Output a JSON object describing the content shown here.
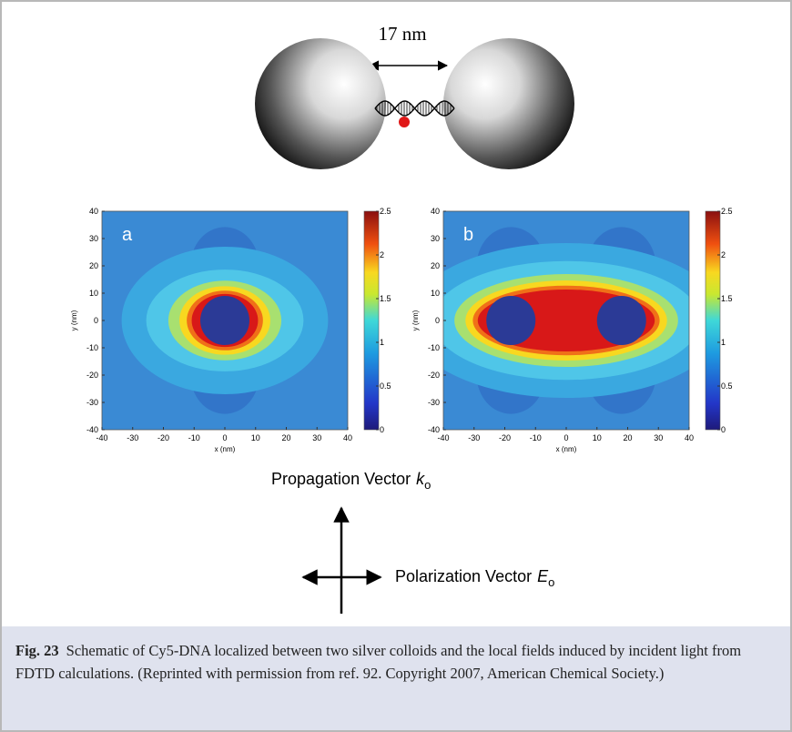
{
  "schematic": {
    "distance_label": "17 nm"
  },
  "panels": [
    {
      "label": "a",
      "y_axis_label": "y (nm)",
      "x_axis_label": "x (nm)",
      "yticks": [
        40,
        30,
        20,
        10,
        0,
        -10,
        -20,
        -30,
        -40
      ],
      "xticks": [
        -40,
        -30,
        -20,
        -10,
        0,
        10,
        20,
        30,
        40
      ],
      "colorbar_ticks": [
        2.5,
        2,
        1.5,
        1,
        0.5,
        0
      ]
    },
    {
      "label": "b",
      "y_axis_label": "y (nm)",
      "x_axis_label": "x (nm)",
      "yticks": [
        40,
        30,
        20,
        10,
        0,
        -10,
        -20,
        -30,
        -40
      ],
      "xticks": [
        -40,
        -30,
        -20,
        -10,
        0,
        10,
        20,
        30,
        40
      ],
      "colorbar_ticks": [
        2.5,
        2,
        1.5,
        1,
        0.5,
        0
      ]
    }
  ],
  "vectors": {
    "propagation": {
      "text": "Propagation Vector",
      "symbol": "k",
      "subscript": "o"
    },
    "polarization": {
      "text": "Polarization Vector",
      "symbol": "E",
      "subscript": "o"
    }
  },
  "caption": {
    "label": "Fig. 23",
    "text": "Schematic of Cy5-DNA localized between two silver colloids and the local fields induced by incident light from FDTD calculations. (Reprinted with permission from ref. 92. Copyright 2007, American Chemical Society.)"
  }
}
